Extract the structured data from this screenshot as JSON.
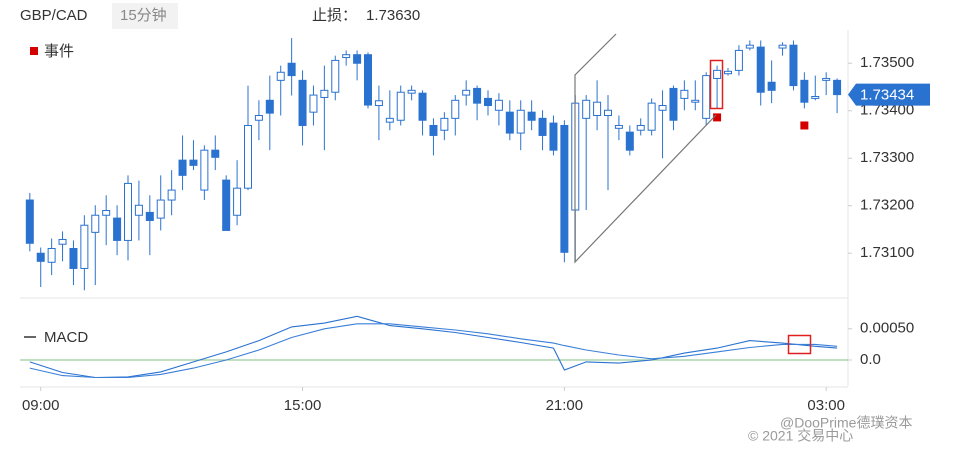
{
  "header": {
    "pair": "GBP/CAD",
    "interval": "15分钟",
    "stop_loss_label": "止损：",
    "stop_loss": "1.73630"
  },
  "watermarks": [
    "@DooPrime德璞资本",
    "© 2021 交易中心"
  ],
  "chart_data": [
    {
      "type": "candlestick",
      "color": "#2a72d0",
      "xlim": [
        -0.9,
        75
      ],
      "ylim": [
        1.7301,
        1.7357
      ],
      "yticks": [
        {
          "value": 1.731,
          "label": "1.73100"
        },
        {
          "value": 1.732,
          "label": "1.73200"
        },
        {
          "value": 1.733,
          "label": "1.73300"
        },
        {
          "value": 1.734,
          "label": "1.73400"
        },
        {
          "value": 1.735,
          "label": "1.73500"
        }
      ],
      "open": [
        1.73212,
        1.731,
        1.73081,
        1.73119,
        1.7311,
        1.73068,
        1.73144,
        1.7318,
        1.73174,
        1.73127,
        1.7318,
        1.73186,
        1.73174,
        1.73212,
        1.73296,
        1.73296,
        1.73233,
        1.73317,
        1.73254,
        1.7318,
        1.73237,
        1.7338,
        1.73422,
        1.73464,
        1.735,
        1.73464,
        1.73397,
        1.73428,
        1.73439,
        1.73512,
        1.73518,
        1.73518,
        1.73411,
        1.73376,
        1.7338,
        1.73437,
        1.73437,
        1.73369,
        1.73359,
        1.73384,
        1.73433,
        1.73447,
        1.73426,
        1.73401,
        1.73397,
        1.73353,
        1.73397,
        1.73384,
        1.73374,
        1.73369,
        1.73191,
        1.73384,
        1.7339,
        1.7339,
        1.73363,
        1.73355,
        1.73359,
        1.73359,
        1.73401,
        1.73447,
        1.73426,
        1.73418,
        1.73384,
        1.73468,
        1.73478,
        1.73485,
        1.73532,
        1.73534,
        1.7346,
        1.73532,
        1.73538,
        1.73464,
        1.73426,
        1.73464,
        1.73464
      ],
      "high": [
        1.73227,
        1.73112,
        1.73131,
        1.73146,
        1.73127,
        1.7318,
        1.73201,
        1.73222,
        1.73201,
        1.73264,
        1.73253,
        1.73222,
        1.73264,
        1.73275,
        1.73348,
        1.73338,
        1.73327,
        1.73348,
        1.73264,
        1.73296,
        1.73453,
        1.73422,
        1.73474,
        1.73495,
        1.73553,
        1.73485,
        1.73453,
        1.73495,
        1.73516,
        1.73527,
        1.73527,
        1.73523,
        1.73453,
        1.73443,
        1.73453,
        1.73453,
        1.73443,
        1.73384,
        1.73397,
        1.73433,
        1.73464,
        1.73453,
        1.73443,
        1.73437,
        1.73422,
        1.73422,
        1.73422,
        1.73401,
        1.7339,
        1.7338,
        1.73433,
        1.73433,
        1.73464,
        1.73433,
        1.7339,
        1.73369,
        1.73384,
        1.73426,
        1.73443,
        1.73453,
        1.73464,
        1.73464,
        1.73481,
        1.73495,
        1.7349,
        1.73538,
        1.73548,
        1.73548,
        1.73506,
        1.73544,
        1.73548,
        1.73481,
        1.73474,
        1.73481,
        1.73468
      ],
      "low": [
        1.73104,
        1.73029,
        1.73054,
        1.73083,
        1.73033,
        1.73022,
        1.73033,
        1.73117,
        1.73096,
        1.73085,
        1.73127,
        1.73096,
        1.73148,
        1.7318,
        1.73233,
        1.73275,
        1.73212,
        1.73275,
        1.73148,
        1.73159,
        1.73233,
        1.73338,
        1.73317,
        1.7339,
        1.73432,
        1.73327,
        1.73369,
        1.73317,
        1.73422,
        1.73495,
        1.73464,
        1.73405,
        1.73338,
        1.73359,
        1.73369,
        1.73422,
        1.73348,
        1.73306,
        1.73338,
        1.73348,
        1.73411,
        1.7338,
        1.7339,
        1.73369,
        1.73338,
        1.73317,
        1.73359,
        1.73317,
        1.73306,
        1.73081,
        1.73081,
        1.73191,
        1.73359,
        1.73233,
        1.73338,
        1.73306,
        1.73348,
        1.73348,
        1.733,
        1.73359,
        1.73401,
        1.73401,
        1.73369,
        1.73405,
        1.73474,
        1.73474,
        1.73527,
        1.73411,
        1.73416,
        1.73516,
        1.73443,
        1.73405,
        1.73422,
        1.73433,
        1.73395
      ],
      "close": [
        1.73121,
        1.73083,
        1.7311,
        1.73129,
        1.73068,
        1.73159,
        1.7318,
        1.7319,
        1.73127,
        1.73247,
        1.73201,
        1.73169,
        1.73212,
        1.73233,
        1.73264,
        1.73285,
        1.73317,
        1.73302,
        1.73148,
        1.73237,
        1.73369,
        1.7339,
        1.73395,
        1.73481,
        1.73474,
        1.73369,
        1.73433,
        1.73443,
        1.73506,
        1.73518,
        1.735,
        1.73412,
        1.73421,
        1.73384,
        1.73439,
        1.73443,
        1.7338,
        1.73348,
        1.73384,
        1.73422,
        1.73443,
        1.73416,
        1.73411,
        1.73422,
        1.73353,
        1.73401,
        1.7338,
        1.73348,
        1.73317,
        1.73102,
        1.73416,
        1.73422,
        1.73418,
        1.73401,
        1.73369,
        1.73317,
        1.73369,
        1.73416,
        1.73411,
        1.7338,
        1.73443,
        1.73422,
        1.73474,
        1.73485,
        1.73483,
        1.73527,
        1.73538,
        1.73439,
        1.73443,
        1.73538,
        1.73453,
        1.73418,
        1.7343,
        1.73468,
        1.73434
      ],
      "last_price": {
        "value": 1.73434,
        "label": "1.73434"
      },
      "series": [
        {
          "name": "事件",
          "type": "scatter",
          "color": "#d40000",
          "x": [
            63,
            71
          ],
          "values": [
            1.73386,
            1.73369
          ]
        }
      ]
    },
    {
      "type": "line",
      "xlim": [
        -0.9,
        75
      ],
      "ylim": [
        -0.0004,
        0.0008
      ],
      "yticks": [
        {
          "value": 0,
          "label": "0.0"
        },
        {
          "value": 0.0005,
          "label": "0.00050"
        }
      ],
      "xticks": [
        {
          "value": 1,
          "label": "09:00"
        },
        {
          "value": 25,
          "label": "15:00"
        },
        {
          "value": 49,
          "label": "21:00"
        },
        {
          "value": 73,
          "label": "03:00"
        }
      ],
      "hline": 0,
      "hline_color": "#9ccc9c",
      "series": [
        {
          "name": "MACD",
          "color": "#2a72d0",
          "x": [
            0,
            3,
            6,
            9,
            12,
            15,
            18,
            21,
            24,
            27,
            30,
            33,
            36,
            39,
            42,
            45,
            48,
            49,
            51,
            54,
            57,
            60,
            63,
            66,
            69,
            72,
            74
          ],
          "values": [
            -3e-05,
            -0.0002,
            -0.00028,
            -0.00027,
            -0.00019,
            -3e-05,
            0.00013,
            0.00031,
            0.00053,
            0.00059,
            0.0007,
            0.00055,
            0.0005,
            0.00044,
            0.00036,
            0.00028,
            0.00019,
            -0.00016,
            -3e-05,
            -5e-05,
            0,
            0.00011,
            0.00019,
            0.00031,
            0.00027,
            0.00022,
            0.00019
          ]
        },
        {
          "color": "#3a7fd8",
          "x": [
            0,
            3,
            6,
            9,
            12,
            15,
            18,
            21,
            24,
            27,
            30,
            33,
            36,
            39,
            42,
            45,
            48,
            49,
            51,
            54,
            57,
            60,
            63,
            66,
            69,
            72,
            74
          ],
          "values": [
            -0.00013,
            -0.00025,
            -0.00028,
            -0.00028,
            -0.00023,
            -0.00013,
            0,
            0.00016,
            0.00036,
            0.0005,
            0.00058,
            0.00058,
            0.00053,
            0.00048,
            0.00042,
            0.00034,
            0.00027,
            0.00023,
            0.00016,
            8e-05,
            2e-05,
            6e-05,
            0.00013,
            0.0002,
            0.00025,
            0.00025,
            0.00022
          ]
        }
      ]
    }
  ]
}
